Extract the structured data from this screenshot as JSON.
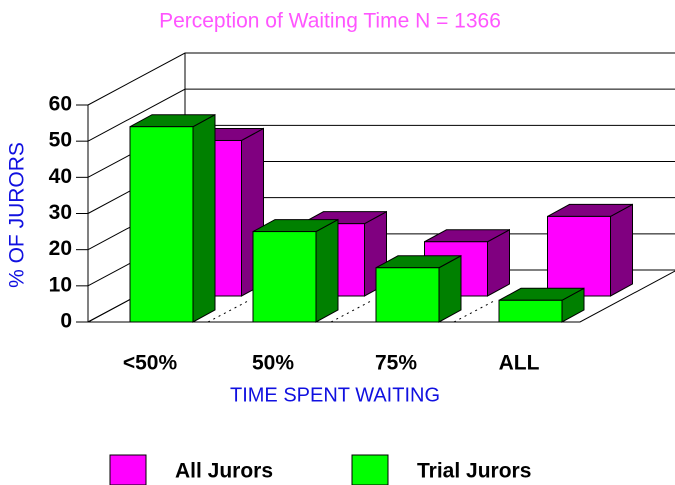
{
  "chart_data": {
    "type": "bar3d",
    "title": "Perception of Waiting Time  N = 1366",
    "x_label": "TIME SPENT WAITING",
    "y_label": "% OF JURORS",
    "categories": [
      "<50%",
      "50%",
      "75%",
      "ALL"
    ],
    "series": [
      {
        "name": "All Jurors",
        "color": "#ff00ff",
        "values": [
          43,
          20,
          15,
          22
        ]
      },
      {
        "name": "Trial Jurors",
        "color": "#00ff00",
        "values": [
          54,
          25,
          15,
          6
        ]
      }
    ],
    "ylim": [
      0,
      60
    ],
    "yticks": [
      0,
      10,
      20,
      30,
      40,
      50,
      60
    ],
    "grid": true,
    "legend": "bottom"
  }
}
